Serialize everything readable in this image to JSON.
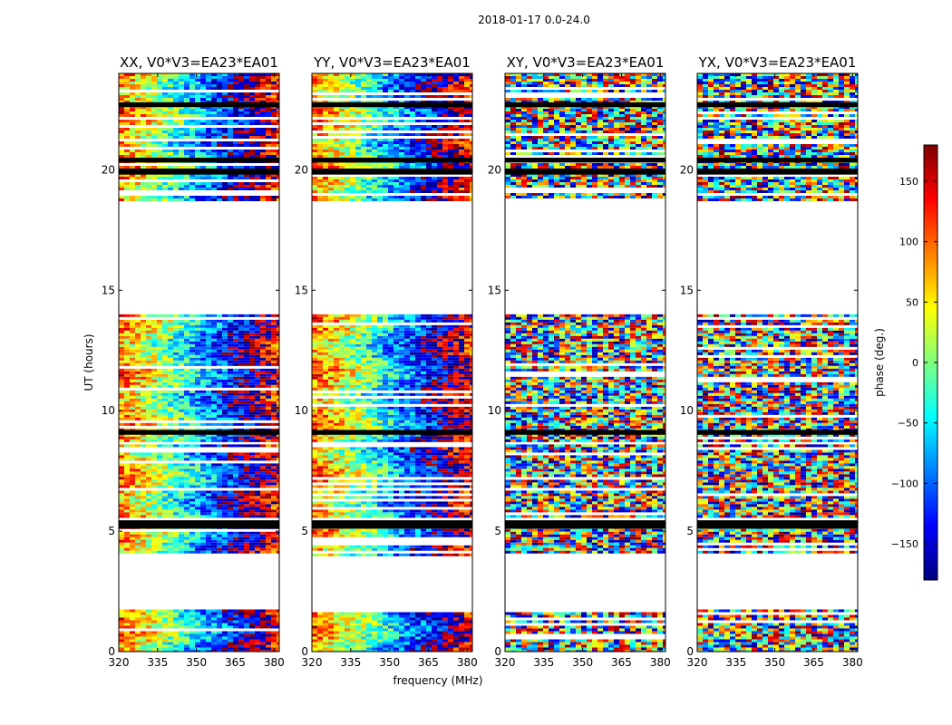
{
  "figure": {
    "suptitle": "2018-01-17 0.0-24.0"
  },
  "chart_data": {
    "type": "heatmap",
    "xlabel": "frequency (MHz)",
    "ylabel": "UT (hours)",
    "xlim": [
      320,
      382
    ],
    "ylim": [
      0,
      24
    ],
    "xticks": [
      320,
      335,
      350,
      365,
      380
    ],
    "yticks": [
      0,
      5,
      10,
      15,
      20
    ],
    "panels": [
      {
        "title": "XX, V0*V3=EA23*EA01",
        "pol": "XX",
        "pattern": "coherent"
      },
      {
        "title": "YY, V0*V3=EA23*EA01",
        "pol": "YY",
        "pattern": "coherent"
      },
      {
        "title": "XY, V0*V3=EA23*EA01",
        "pol": "XY",
        "pattern": "noise"
      },
      {
        "title": "YX, V0*V3=EA23*EA01",
        "pol": "YX",
        "pattern": "noise"
      }
    ],
    "data_blocks_ut_hours": [
      [
        0.0,
        1.75
      ],
      [
        4.0,
        5.2
      ],
      [
        5.6,
        8.6
      ],
      [
        8.8,
        14.0
      ],
      [
        18.7,
        24.0
      ]
    ],
    "flagged_black_bands_ut_hours": [
      [
        5.1,
        5.45
      ],
      [
        9.0,
        9.2
      ],
      [
        19.8,
        20.05
      ],
      [
        20.3,
        20.5
      ],
      [
        22.6,
        22.8
      ]
    ],
    "colorbar": {
      "label": "phase (deg.)",
      "range": [
        -180,
        180
      ],
      "ticks": [
        150,
        100,
        50,
        0,
        -50,
        -100,
        -150
      ],
      "tick_labels": [
        "150",
        "100",
        "50",
        "0",
        "−50",
        "−100",
        "−150"
      ],
      "colormap": "jet"
    }
  },
  "colors": {
    "jet_stops": [
      "#000080",
      "#0000ff",
      "#00ffff",
      "#7fff7f",
      "#ffff00",
      "#ff0000",
      "#800000"
    ],
    "flagged": "#000000",
    "axes": "#000000"
  }
}
